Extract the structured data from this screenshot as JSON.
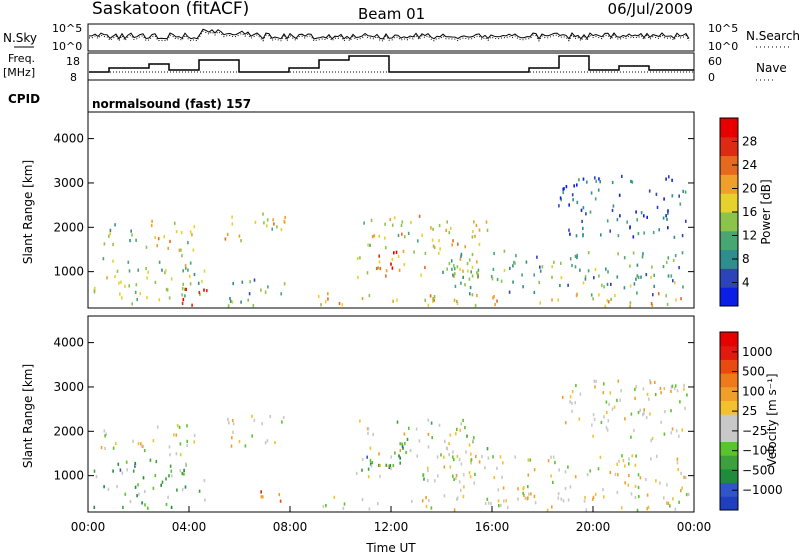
{
  "header": {
    "station": "Saskatoon (fitACF)",
    "beam": "Beam 01",
    "date": "06/Jul/2009"
  },
  "status_panels": {
    "nsky_label": "N.Sky",
    "nsky_ticks": [
      "10^5",
      "10^0"
    ],
    "nsearch_ticks": [
      "10^5",
      "10^0"
    ],
    "nsearch_label": "N.Search",
    "freq_label_line1": "Freq.",
    "freq_label_line2": "[MHz]",
    "freq_ticks": [
      "18",
      "8"
    ],
    "nave_ticks": [
      "60",
      "0"
    ],
    "nave_label": "Nave",
    "cpid_label": "CPID",
    "cpid_text": "normalsound (fast) 157"
  },
  "chart_data": [
    {
      "type": "heatmap",
      "name": "power",
      "ylabel": "Slant Range [km]",
      "xlabel": "Time UT",
      "x_range_hours": [
        0,
        24
      ],
      "ylim": [
        180,
        4600
      ],
      "ytick_labels": [
        "4000",
        "3000",
        "2000",
        "1000"
      ],
      "ytick_values": [
        4000,
        3000,
        2000,
        1000
      ],
      "colorbar": {
        "label": "Power [dB]",
        "tick_labels": [
          "28",
          "24",
          "20",
          "16",
          "12",
          "8",
          "4"
        ],
        "colors": [
          "#0a1ee6",
          "#2d44b9",
          "#2f8d8d",
          "#47a672",
          "#8cc34b",
          "#e6d22d",
          "#f0a02a",
          "#e66a1e",
          "#dc2a14",
          "#e60000"
        ]
      },
      "echo_regions": [
        {
          "t0": 0.2,
          "t1": 4.6,
          "r0": 300,
          "r1": 1400,
          "level": 0.45
        },
        {
          "t0": 0.4,
          "t1": 2.2,
          "r0": 1600,
          "r1": 2100,
          "level": 0.35
        },
        {
          "t0": 1.8,
          "t1": 4.2,
          "r0": 1500,
          "r1": 2200,
          "level": 0.55
        },
        {
          "t0": 3.4,
          "t1": 4.8,
          "r0": 250,
          "r1": 700,
          "level": 0.95
        },
        {
          "t0": 5.4,
          "t1": 7.8,
          "r0": 1700,
          "r1": 2400,
          "level": 0.55
        },
        {
          "t0": 5.4,
          "t1": 7.8,
          "r0": 250,
          "r1": 900,
          "level": 0.35
        },
        {
          "t0": 9.0,
          "t1": 23.8,
          "r0": 250,
          "r1": 550,
          "level": 0.6
        },
        {
          "t0": 10.6,
          "t1": 15.8,
          "r0": 900,
          "r1": 2300,
          "level": 0.55
        },
        {
          "t0": 11.4,
          "t1": 12.6,
          "r0": 1100,
          "r1": 1600,
          "level": 0.9
        },
        {
          "t0": 14.0,
          "t1": 23.8,
          "r0": 500,
          "r1": 1500,
          "level": 0.35
        },
        {
          "t0": 18.6,
          "t1": 23.8,
          "r0": 1800,
          "r1": 3200,
          "level": 0.2
        }
      ]
    },
    {
      "type": "heatmap",
      "name": "velocity",
      "ylabel": "Slant Range [km]",
      "xlabel": "Time UT",
      "x_range_hours": [
        0,
        24
      ],
      "ylim": [
        180,
        4600
      ],
      "ytick_labels": [
        "4000",
        "3000",
        "2000",
        "1000"
      ],
      "ytick_values": [
        4000,
        3000,
        2000,
        1000
      ],
      "xtick_labels": [
        "00:00",
        "04:00",
        "08:00",
        "12:00",
        "16:00",
        "20:00",
        "00:00"
      ],
      "colorbar": {
        "label": "Velocity [m s⁻¹]",
        "tick_labels": [
          "1000",
          "500",
          "100",
          "25",
          "−25",
          "−100",
          "−500",
          "−1000"
        ],
        "colors": [
          "#1f3fc0",
          "#2f55c8",
          "#1e8c3c",
          "#3ca03c",
          "#5ac32d",
          "#c8c8c8",
          "#c8c8c8",
          "#f5c02d",
          "#f0a02a",
          "#ee7a1c",
          "#e84a10",
          "#e01a10",
          "#e60000"
        ]
      },
      "echo_regions": [
        {
          "t0": 0.2,
          "t1": 4.6,
          "r0": 300,
          "r1": 1400,
          "level": 0.3
        },
        {
          "t0": 0.4,
          "t1": 2.2,
          "r0": 1600,
          "r1": 2100,
          "level": 0.5
        },
        {
          "t0": 1.8,
          "t1": 4.2,
          "r0": 1500,
          "r1": 2200,
          "level": 0.5
        },
        {
          "t0": 5.4,
          "t1": 7.8,
          "r0": 1700,
          "r1": 2400,
          "level": 0.5
        },
        {
          "t0": 6.2,
          "t1": 7.8,
          "r0": 450,
          "r1": 750,
          "level": 0.8
        },
        {
          "t0": 9.0,
          "t1": 23.8,
          "r0": 250,
          "r1": 550,
          "level": 0.5
        },
        {
          "t0": 11.0,
          "t1": 12.6,
          "r0": 1100,
          "r1": 1800,
          "level": 0.2
        },
        {
          "t0": 10.6,
          "t1": 15.8,
          "r0": 900,
          "r1": 2300,
          "level": 0.45
        },
        {
          "t0": 14.0,
          "t1": 23.8,
          "r0": 500,
          "r1": 1500,
          "level": 0.5
        },
        {
          "t0": 18.6,
          "t1": 23.8,
          "r0": 1800,
          "r1": 3200,
          "level": 0.5
        }
      ]
    }
  ]
}
